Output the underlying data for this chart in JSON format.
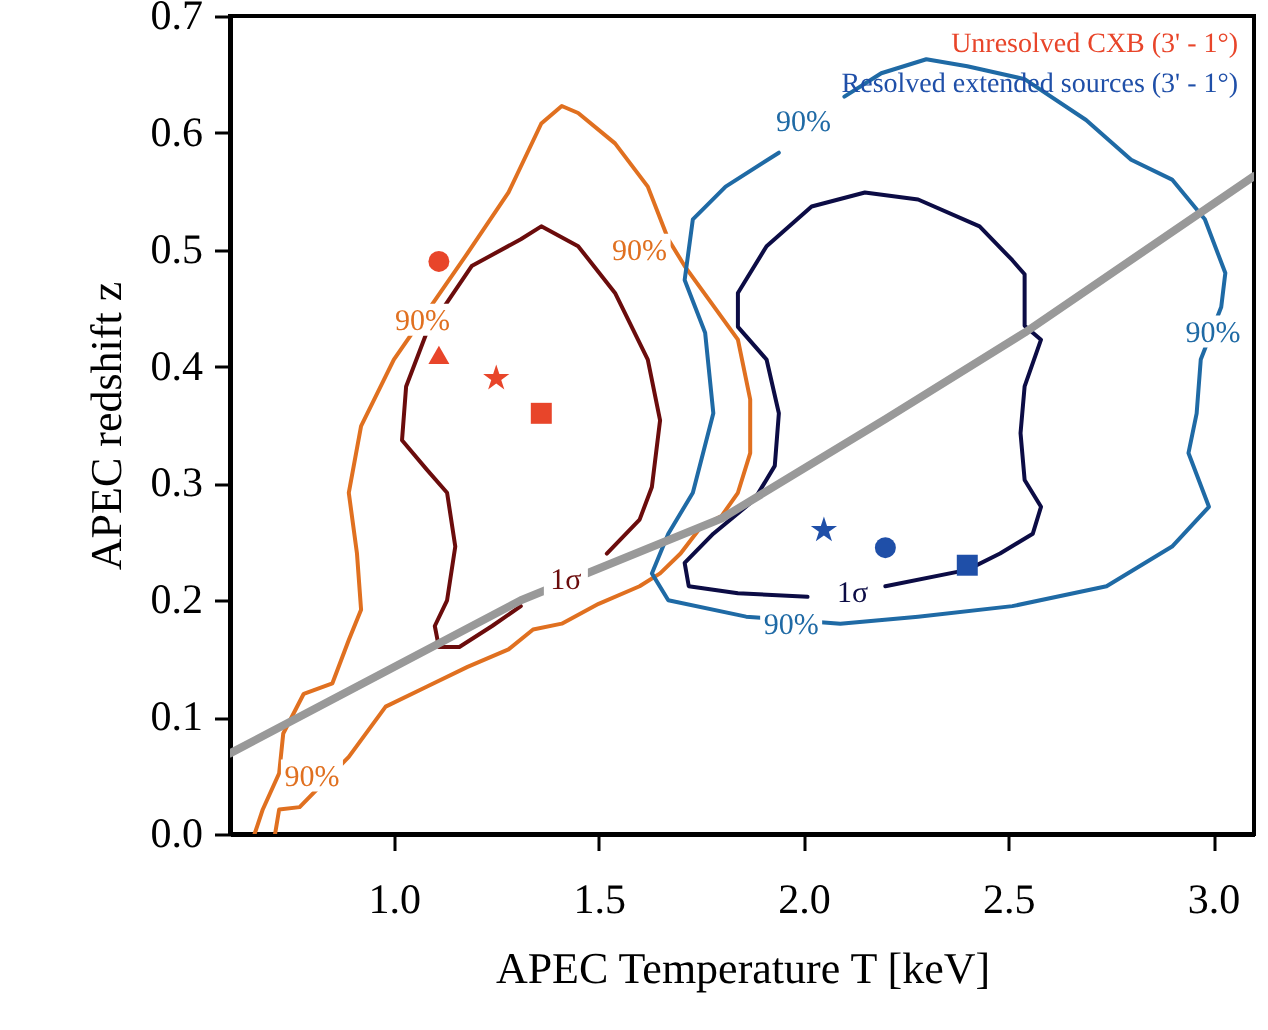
{
  "chart_data": {
    "type": "line",
    "xlabel": "APEC Temperature T [keV]",
    "ylabel": "APEC redshift z",
    "xlim": [
      0.6,
      3.1
    ],
    "ylim": [
      0,
      0.7
    ],
    "xticks": [
      {
        "value": 1,
        "label": "1.0"
      },
      {
        "value": 1.5,
        "label": "1.5"
      },
      {
        "value": 2,
        "label": "2.0"
      },
      {
        "value": 2.5,
        "label": "2.5"
      },
      {
        "value": 3,
        "label": "3.0"
      }
    ],
    "yticks": [
      {
        "value": 0,
        "label": "0.0"
      },
      0.1,
      0.2,
      0.3,
      0.4,
      0.5,
      0.6,
      0.7
    ],
    "grid": false,
    "legend": "top right",
    "series": [
      {
        "type": "line",
        "color": "#e07020",
        "x": [
          0.66,
          0.68,
          0.72,
          0.73,
          0.78,
          0.85,
          0.89,
          0.92,
          0.91,
          0.89,
          0.92,
          1.0,
          1.18,
          1.28,
          1.36,
          1.41,
          1.45,
          1.54,
          1.62,
          1.67,
          1.71,
          1.84,
          1.87,
          1.87,
          1.84,
          1.8,
          1.75,
          1.7,
          1.65,
          1.6,
          1.5,
          1.41,
          1.34,
          1.28,
          1.18,
          1.08,
          0.98,
          0.89,
          0.77,
          0.72,
          0.71
        ],
        "values": [
          0.0,
          0.021,
          0.052,
          0.086,
          0.12,
          0.129,
          0.166,
          0.192,
          0.24,
          0.292,
          0.349,
          0.406,
          0.497,
          0.549,
          0.608,
          0.623,
          0.617,
          0.591,
          0.554,
          0.509,
          0.486,
          0.423,
          0.372,
          0.326,
          0.292,
          0.272,
          0.263,
          0.24,
          0.223,
          0.212,
          0.197,
          0.18,
          0.175,
          0.158,
          0.143,
          0.126,
          0.109,
          0.066,
          0.023,
          0.021,
          0.0
        ]
      },
      {
        "type": "line",
        "color": "#6b0c0c",
        "x": [
          1.31,
          1.24,
          1.16,
          1.11,
          1.1,
          1.13,
          1.15,
          1.13,
          1.08,
          1.02,
          1.03,
          1.08,
          1.19,
          1.31,
          1.36,
          1.45,
          1.54,
          1.62,
          1.65,
          1.63,
          1.6,
          1.52
        ],
        "values": [
          0.195,
          0.178,
          0.16,
          0.16,
          0.178,
          0.2,
          0.246,
          0.292,
          0.312,
          0.337,
          0.383,
          0.429,
          0.486,
          0.509,
          0.52,
          0.503,
          0.463,
          0.406,
          0.354,
          0.297,
          0.269,
          0.24
        ]
      },
      {
        "type": "line",
        "color": "#1f6aa5",
        "x": [
          2.1,
          2.19,
          2.3,
          2.4,
          2.54,
          2.69,
          2.8,
          2.9,
          2.98,
          3.03,
          3.02,
          2.97,
          2.96,
          2.94,
          2.99,
          2.9,
          2.74,
          2.51,
          2.28,
          2.09,
          1.86,
          1.67,
          1.63,
          1.67,
          1.73,
          1.78,
          1.76,
          1.71,
          1.73,
          1.81,
          1.94
        ],
        "values": [
          0.631,
          0.651,
          0.663,
          0.657,
          0.646,
          0.611,
          0.577,
          0.56,
          0.526,
          0.48,
          0.451,
          0.406,
          0.36,
          0.326,
          0.28,
          0.246,
          0.212,
          0.195,
          0.186,
          0.18,
          0.186,
          0.2,
          0.223,
          0.257,
          0.292,
          0.36,
          0.429,
          0.474,
          0.526,
          0.554,
          0.583
        ]
      },
      {
        "type": "line",
        "color": "#0c0c45",
        "x": [
          2.01,
          1.84,
          1.72,
          1.71,
          1.78,
          1.88,
          1.93,
          1.94,
          1.91,
          1.84,
          1.84,
          1.84,
          1.91,
          2.02,
          2.15,
          2.28,
          2.43,
          2.51,
          2.54,
          2.54,
          2.58,
          2.54,
          2.53,
          2.54,
          2.58,
          2.56,
          2.48,
          2.4,
          2.2
        ],
        "values": [
          0.203,
          0.206,
          0.212,
          0.232,
          0.257,
          0.286,
          0.315,
          0.36,
          0.406,
          0.434,
          0.457,
          0.463,
          0.503,
          0.537,
          0.549,
          0.543,
          0.52,
          0.491,
          0.479,
          0.435,
          0.423,
          0.383,
          0.343,
          0.303,
          0.28,
          0.257,
          0.24,
          0.226,
          0.212
        ]
      },
      {
        "color": "#999999",
        "x": [
          0.6,
          1.31,
          1.8,
          2.2,
          2.54,
          3.1
        ],
        "values": [
          0.069,
          0.2,
          0.27,
          0.355,
          0.429,
          0.563
        ]
      },
      {
        "type": "scatter",
        "name": "Unresolved CXB (3' - 1°)",
        "marker": "circle",
        "color": "#e8452a",
        "x": [
          1.11
        ],
        "values": [
          0.49
        ]
      },
      {
        "type": "scatter",
        "marker": "triangle",
        "color": "#e8452a",
        "x": [
          1.11
        ],
        "values": [
          0.41
        ]
      },
      {
        "type": "scatter",
        "marker": "star",
        "color": "#e8452a",
        "x": [
          1.25
        ],
        "values": [
          0.39
        ]
      },
      {
        "type": "scatter",
        "marker": "square",
        "color": "#e8452a",
        "x": [
          1.36
        ],
        "values": [
          0.36
        ]
      },
      {
        "type": "scatter",
        "name": "Resolved extended sources (3' - 1°)",
        "marker": "star",
        "color": "#1f4fa8",
        "x": [
          2.05
        ],
        "values": [
          0.26
        ]
      },
      {
        "type": "scatter",
        "marker": "circle",
        "color": "#1f4fa8",
        "x": [
          2.2
        ],
        "values": [
          0.245
        ]
      },
      {
        "type": "scatter",
        "marker": "square",
        "color": "#1f4fa8",
        "x": [
          2.4
        ],
        "values": [
          0.23
        ]
      }
    ],
    "annotations": [
      {
        "text": "90%",
        "x": 1.07,
        "y": 0.44
      },
      {
        "text": "90%",
        "x": 1.6,
        "y": 0.5
      },
      {
        "text": "90%",
        "x": 0.8,
        "y": 0.05
      },
      {
        "text": "1σ",
        "x": 1.42,
        "y": 0.218
      },
      {
        "text": "90%",
        "x": 2.0,
        "y": 0.61
      },
      {
        "text": "90%",
        "x": 3.0,
        "y": 0.43
      },
      {
        "text": "90%",
        "x": 1.97,
        "y": 0.18
      },
      {
        "text": "1σ",
        "x": 2.12,
        "y": 0.207
      }
    ]
  }
}
